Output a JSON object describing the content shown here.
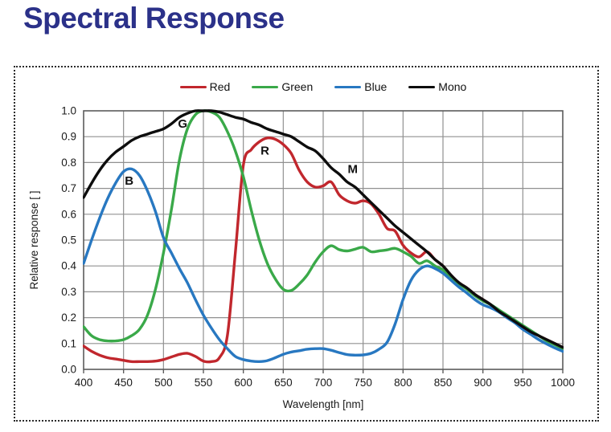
{
  "title": "Spectral Response",
  "colors": {
    "title": "#2b3189",
    "grid": "#909090",
    "axis": "#5c5c5c",
    "tick_text": "#1a1a1a",
    "annotation_text": "#111111",
    "panel_border": "#2b2b2b"
  },
  "chart_data": {
    "type": "line",
    "title": "",
    "xlabel": "Wavelength [nm]",
    "ylabel": "Relative response [ ]",
    "xlim": [
      400,
      1000
    ],
    "ylim": [
      0.0,
      1.0
    ],
    "grid": true,
    "legend_position": "top",
    "x_ticks": [
      400,
      450,
      500,
      550,
      600,
      650,
      700,
      750,
      800,
      850,
      900,
      950,
      1000
    ],
    "y_ticks": [
      "0.0",
      "0.1",
      "0.2",
      "0.3",
      "0.4",
      "0.5",
      "0.6",
      "0.7",
      "0.8",
      "0.9",
      "1.0"
    ],
    "x_start": 400,
    "x_step": 10,
    "series": [
      {
        "name": "Red",
        "color": "#c1272d",
        "annotation": {
          "text": "R",
          "x": 627,
          "y": 0.83
        },
        "values": [
          0.09,
          0.07,
          0.055,
          0.045,
          0.04,
          0.035,
          0.03,
          0.03,
          0.03,
          0.032,
          0.038,
          0.048,
          0.058,
          0.062,
          0.05,
          0.032,
          0.03,
          0.045,
          0.13,
          0.45,
          0.79,
          0.85,
          0.88,
          0.895,
          0.89,
          0.87,
          0.835,
          0.77,
          0.725,
          0.705,
          0.71,
          0.725,
          0.675,
          0.652,
          0.643,
          0.652,
          0.64,
          0.6,
          0.545,
          0.535,
          0.48,
          0.45,
          0.435,
          0.455,
          0.425,
          0.4,
          0.365,
          0.335,
          0.315,
          0.29,
          0.27,
          0.25,
          0.225,
          0.205,
          0.185,
          0.165,
          0.145,
          0.13,
          0.115,
          0.1,
          0.085
        ]
      },
      {
        "name": "Green",
        "color": "#3aa949",
        "annotation": {
          "text": "G",
          "x": 524,
          "y": 0.935
        },
        "values": [
          0.165,
          0.13,
          0.115,
          0.11,
          0.11,
          0.115,
          0.13,
          0.155,
          0.21,
          0.31,
          0.45,
          0.62,
          0.81,
          0.93,
          0.985,
          1.0,
          0.995,
          0.975,
          0.92,
          0.845,
          0.745,
          0.615,
          0.5,
          0.41,
          0.35,
          0.31,
          0.305,
          0.33,
          0.365,
          0.415,
          0.455,
          0.478,
          0.463,
          0.458,
          0.465,
          0.472,
          0.455,
          0.458,
          0.462,
          0.468,
          0.455,
          0.437,
          0.41,
          0.42,
          0.4,
          0.385,
          0.355,
          0.33,
          0.31,
          0.285,
          0.265,
          0.25,
          0.23,
          0.21,
          0.19,
          0.17,
          0.15,
          0.13,
          0.11,
          0.095,
          0.08
        ]
      },
      {
        "name": "Blue",
        "color": "#2878c1",
        "annotation": {
          "text": "B",
          "x": 457,
          "y": 0.715
        },
        "values": [
          0.41,
          0.5,
          0.585,
          0.66,
          0.72,
          0.765,
          0.775,
          0.75,
          0.69,
          0.61,
          0.51,
          0.45,
          0.39,
          0.335,
          0.27,
          0.21,
          0.16,
          0.115,
          0.08,
          0.05,
          0.038,
          0.032,
          0.03,
          0.034,
          0.045,
          0.058,
          0.067,
          0.072,
          0.078,
          0.08,
          0.08,
          0.074,
          0.065,
          0.057,
          0.055,
          0.056,
          0.062,
          0.078,
          0.105,
          0.175,
          0.27,
          0.345,
          0.385,
          0.4,
          0.39,
          0.372,
          0.345,
          0.318,
          0.295,
          0.27,
          0.25,
          0.238,
          0.222,
          0.2,
          0.18,
          0.155,
          0.135,
          0.115,
          0.098,
          0.083,
          0.07
        ]
      },
      {
        "name": "Mono",
        "color": "#0d0d0d",
        "annotation": {
          "text": "M",
          "x": 737,
          "y": 0.76
        },
        "values": [
          0.665,
          0.72,
          0.77,
          0.81,
          0.84,
          0.862,
          0.885,
          0.9,
          0.91,
          0.92,
          0.93,
          0.95,
          0.975,
          0.99,
          1.0,
          1.0,
          1.0,
          0.995,
          0.985,
          0.975,
          0.968,
          0.955,
          0.945,
          0.93,
          0.92,
          0.91,
          0.9,
          0.88,
          0.86,
          0.845,
          0.815,
          0.78,
          0.755,
          0.725,
          0.705,
          0.675,
          0.645,
          0.615,
          0.585,
          0.555,
          0.53,
          0.505,
          0.48,
          0.455,
          0.425,
          0.4,
          0.365,
          0.335,
          0.315,
          0.29,
          0.27,
          0.25,
          0.225,
          0.205,
          0.185,
          0.165,
          0.145,
          0.13,
          0.115,
          0.1,
          0.085
        ]
      }
    ]
  }
}
